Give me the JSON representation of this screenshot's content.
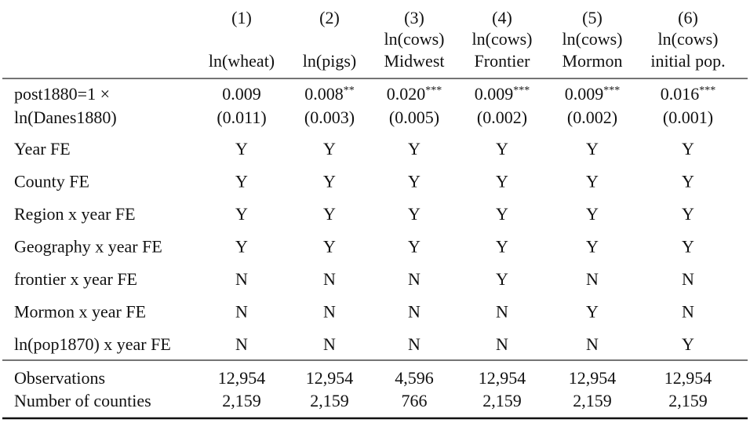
{
  "table": {
    "columns": [
      {
        "number": "(1)",
        "lines": [
          "ln(wheat)"
        ]
      },
      {
        "number": "(2)",
        "lines": [
          "ln(pigs)"
        ]
      },
      {
        "number": "(3)",
        "lines": [
          "ln(cows)",
          "Midwest"
        ]
      },
      {
        "number": "(4)",
        "lines": [
          "ln(cows)",
          "Frontier"
        ]
      },
      {
        "number": "(5)",
        "lines": [
          "ln(cows)",
          "Mormon"
        ]
      },
      {
        "number": "(6)",
        "lines": [
          "ln(cows)",
          "initial pop."
        ]
      }
    ],
    "coef_row": {
      "label": [
        "post1880=1 ×",
        "ln(Danes1880)"
      ],
      "estimates": [
        {
          "value": "0.009"
        },
        {
          "value": "0.008",
          "stars": "**"
        },
        {
          "value": "0.020",
          "stars": "***"
        },
        {
          "value": "0.009",
          "stars": "***"
        },
        {
          "value": "0.009",
          "stars": "***"
        },
        {
          "value": "0.016",
          "stars": "***"
        }
      ],
      "se": [
        "(0.011)",
        "(0.003)",
        "(0.005)",
        "(0.002)",
        "(0.002)",
        "(0.001)"
      ]
    },
    "fe_rows": [
      {
        "label": "Year FE",
        "values": [
          "Y",
          "Y",
          "Y",
          "Y",
          "Y",
          "Y"
        ]
      },
      {
        "label": "County FE",
        "values": [
          "Y",
          "Y",
          "Y",
          "Y",
          "Y",
          "Y"
        ]
      },
      {
        "label": "Region x year FE",
        "values": [
          "Y",
          "Y",
          "Y",
          "Y",
          "Y",
          "Y"
        ]
      },
      {
        "label": "Geography x year FE",
        "values": [
          "Y",
          "Y",
          "Y",
          "Y",
          "Y",
          "Y"
        ]
      },
      {
        "label": "frontier x year FE",
        "values": [
          "N",
          "N",
          "N",
          "Y",
          "N",
          "N"
        ]
      },
      {
        "label": "Mormon x year FE",
        "values": [
          "N",
          "N",
          "N",
          "N",
          "Y",
          "N"
        ]
      },
      {
        "label": "ln(pop1870) x year FE",
        "values": [
          "N",
          "N",
          "N",
          "N",
          "N",
          "Y"
        ]
      }
    ],
    "stats": [
      {
        "label": "Observations",
        "values": [
          "12,954",
          "12,954",
          "4,596",
          "12,954",
          "12,954",
          "12,954"
        ]
      },
      {
        "label": "Number of counties",
        "values": [
          "2,159",
          "2,159",
          "766",
          "2,159",
          "2,159",
          "2,159"
        ]
      }
    ]
  }
}
